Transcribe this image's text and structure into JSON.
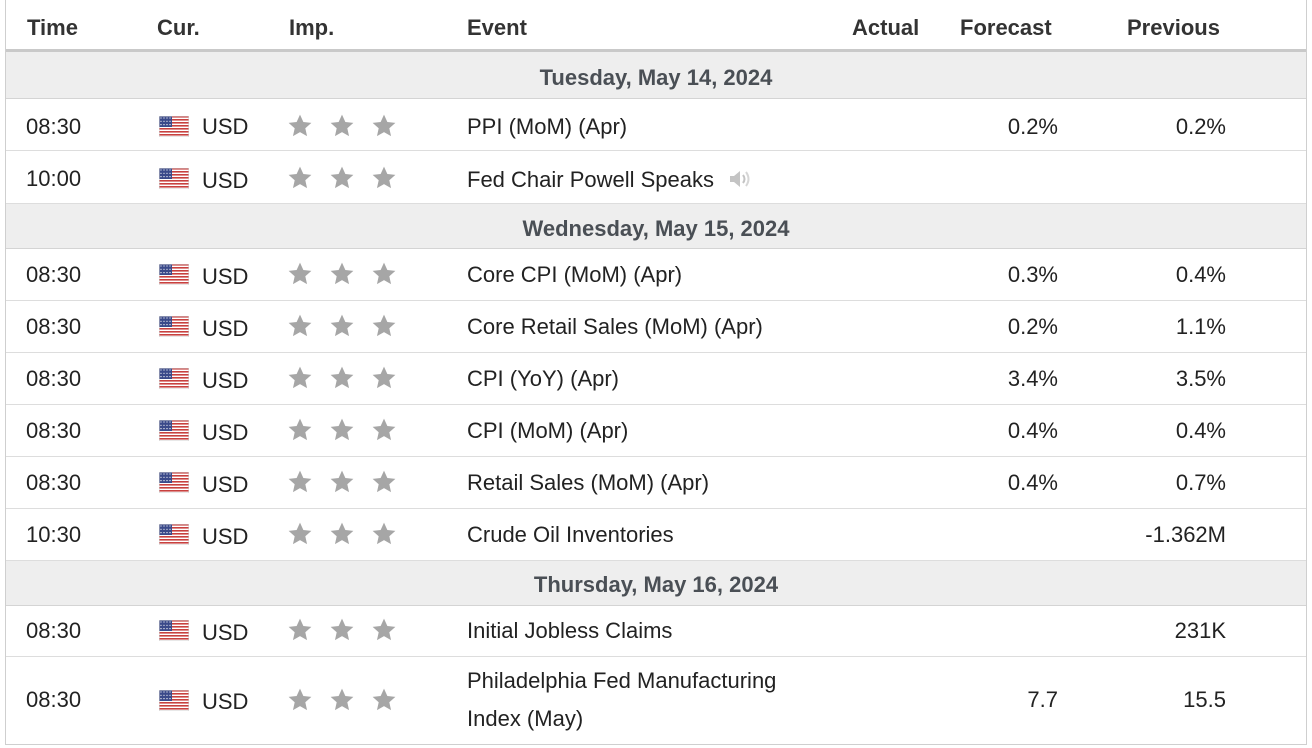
{
  "headers": {
    "time": "Time",
    "currency": "Cur.",
    "importance": "Imp.",
    "event": "Event",
    "actual": "Actual",
    "forecast": "Forecast",
    "previous": "Previous"
  },
  "days": [
    {
      "date": "Tuesday, May 14, 2024",
      "events": [
        {
          "time": "08:30",
          "currency": "USD",
          "importance_stars": 3,
          "event": "PPI (MoM) (Apr)",
          "actual": "",
          "forecast": "0.2%",
          "previous": "0.2%"
        },
        {
          "time": "10:00",
          "currency": "USD",
          "importance_stars": 3,
          "event": "Fed Chair Powell Speaks",
          "has_speech_icon": true,
          "actual": "",
          "forecast": "",
          "previous": ""
        }
      ]
    },
    {
      "date": "Wednesday, May 15, 2024",
      "events": [
        {
          "time": "08:30",
          "currency": "USD",
          "importance_stars": 3,
          "event": "Core CPI (MoM) (Apr)",
          "actual": "",
          "forecast": "0.3%",
          "previous": "0.4%"
        },
        {
          "time": "08:30",
          "currency": "USD",
          "importance_stars": 3,
          "event": "Core Retail Sales (MoM) (Apr)",
          "actual": "",
          "forecast": "0.2%",
          "previous": "1.1%"
        },
        {
          "time": "08:30",
          "currency": "USD",
          "importance_stars": 3,
          "event": "CPI (YoY) (Apr)",
          "actual": "",
          "forecast": "3.4%",
          "previous": "3.5%"
        },
        {
          "time": "08:30",
          "currency": "USD",
          "importance_stars": 3,
          "event": "CPI (MoM) (Apr)",
          "actual": "",
          "forecast": "0.4%",
          "previous": "0.4%"
        },
        {
          "time": "08:30",
          "currency": "USD",
          "importance_stars": 3,
          "event": "Retail Sales (MoM) (Apr)",
          "actual": "",
          "forecast": "0.4%",
          "previous": "0.7%"
        },
        {
          "time": "10:30",
          "currency": "USD",
          "importance_stars": 3,
          "event": "Crude Oil Inventories",
          "actual": "",
          "forecast": "",
          "previous": "-1.362M"
        }
      ]
    },
    {
      "date": "Thursday, May 16, 2024",
      "events": [
        {
          "time": "08:30",
          "currency": "USD",
          "importance_stars": 3,
          "event": "Initial Jobless Claims",
          "actual": "",
          "forecast": "",
          "previous": "231K"
        },
        {
          "time": "08:30",
          "currency": "USD",
          "importance_stars": 3,
          "event_lines": [
            "Philadelphia Fed Manufacturing",
            "Index (May)"
          ],
          "actual": "",
          "forecast": "7.7",
          "previous": "15.5"
        }
      ]
    }
  ],
  "colors": {
    "star_gray": "#a6a6a6",
    "header_border": "#c9c9c9",
    "date_row_bg": "#eeeeee",
    "date_text": "#4a4f55"
  },
  "icons": {
    "currency_flag": "us-flag-icon",
    "importance": "star-icon",
    "speech": "speaker-icon"
  }
}
